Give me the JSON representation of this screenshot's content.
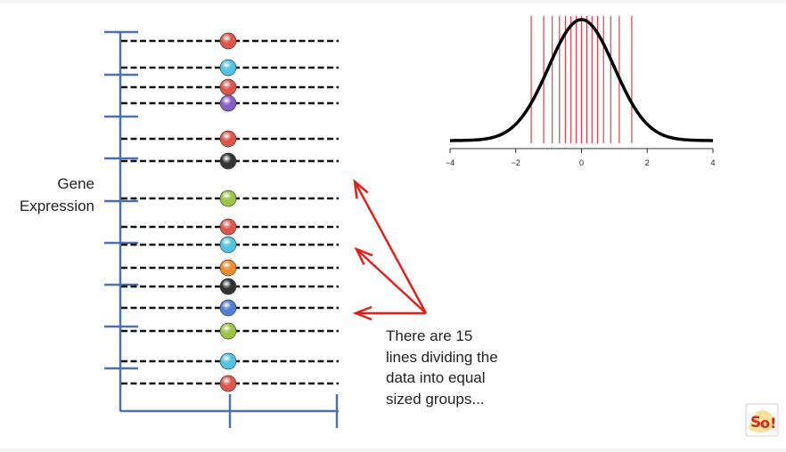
{
  "axis": {
    "label_line1": "Gene",
    "label_line2": "Expression"
  },
  "caption": {
    "lines": [
      "There are 15",
      "lines dividing the",
      "data into equal",
      "sized groups..."
    ]
  },
  "points": [
    {
      "color": "#e05548"
    },
    {
      "color": "#4cc6e4"
    },
    {
      "color": "#e05548"
    },
    {
      "color": "#8a5cc8"
    },
    {
      "color": "#e05548"
    },
    {
      "color": "#333333"
    },
    {
      "color": "#9cc63f"
    },
    {
      "color": "#e05548"
    },
    {
      "color": "#4cc6e4"
    },
    {
      "color": "#f08a2a"
    },
    {
      "color": "#333333"
    },
    {
      "color": "#4f7fd8"
    },
    {
      "color": "#9cc63f"
    },
    {
      "color": "#4cc6e4"
    },
    {
      "color": "#e05548"
    }
  ],
  "chart_data": {
    "type": "line",
    "title": "",
    "xlabel": "",
    "ylabel": "",
    "xlim": [
      -4,
      4
    ],
    "x_ticks": [
      "−4",
      "−2",
      "0",
      "2",
      "4"
    ],
    "series": [
      {
        "function": "standard normal density"
      }
    ],
    "quantile_lines": [
      -1.53,
      -1.15,
      -0.89,
      -0.67,
      -0.49,
      -0.32,
      -0.16,
      0,
      0.16,
      0.32,
      0.49,
      0.67,
      0.89,
      1.15,
      1.53
    ],
    "colors": {
      "curve": "#000000",
      "quantile_lines": "#d9444b"
    }
  },
  "colors": {
    "axis": "#4a72b0",
    "arrow": "#e0211b"
  }
}
